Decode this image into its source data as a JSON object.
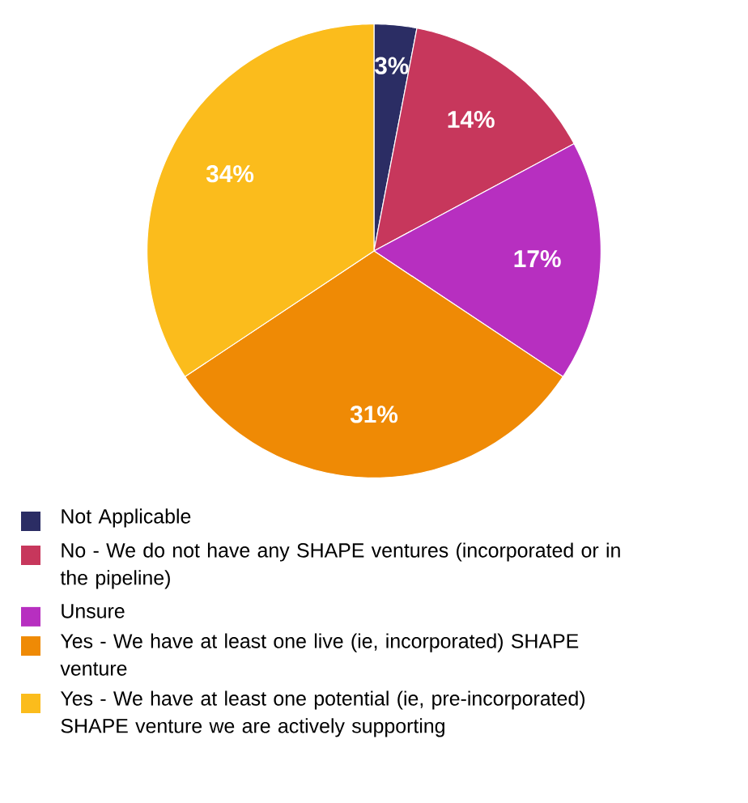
{
  "chart_data": {
    "type": "pie",
    "legend": "bottom",
    "categories": [
      "Not Applicable",
      "No - We do not have any SHAPE ventures (incorporated or in the pipeline)",
      "Unsure",
      "Yes - We have at least one live (ie, incorporated) SHAPE venture",
      "Yes - We have at least one potential (ie, pre-incorporated) SHAPE venture we are actively supporting"
    ],
    "values": [
      3,
      14,
      17,
      31,
      34
    ],
    "value_labels": [
      "3%",
      "14%",
      "17%",
      "31%",
      "34%"
    ],
    "colors": [
      "#2b2d64",
      "#c7375c",
      "#b72fc0",
      "#ef8a05",
      "#fbbc1c"
    ]
  }
}
